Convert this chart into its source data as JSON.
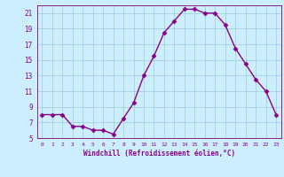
{
  "x": [
    0,
    1,
    2,
    3,
    4,
    5,
    6,
    7,
    8,
    9,
    10,
    11,
    12,
    13,
    14,
    15,
    16,
    17,
    18,
    19,
    20,
    21,
    22,
    23
  ],
  "y": [
    8.0,
    8.0,
    8.0,
    6.5,
    6.5,
    6.0,
    6.0,
    5.5,
    7.5,
    9.5,
    13.0,
    15.5,
    18.5,
    20.0,
    21.5,
    21.5,
    21.0,
    21.0,
    19.5,
    16.5,
    14.5,
    12.5,
    11.0,
    8.0
  ],
  "line_color": "#880088",
  "marker": "D",
  "marker_size": 2.5,
  "line_width": 1,
  "bg_color": "#cceeff",
  "grid_color": "#99cccc",
  "xlabel": "Windchill (Refroidissement éolien,°C)",
  "ylabel": "",
  "ylim": [
    5,
    22
  ],
  "xlim": [
    -0.5,
    23.5
  ],
  "yticks": [
    5,
    7,
    9,
    11,
    13,
    15,
    17,
    19,
    21
  ],
  "xticks": [
    0,
    1,
    2,
    3,
    4,
    5,
    6,
    7,
    8,
    9,
    10,
    11,
    12,
    13,
    14,
    15,
    16,
    17,
    18,
    19,
    20,
    21,
    22,
    23
  ]
}
